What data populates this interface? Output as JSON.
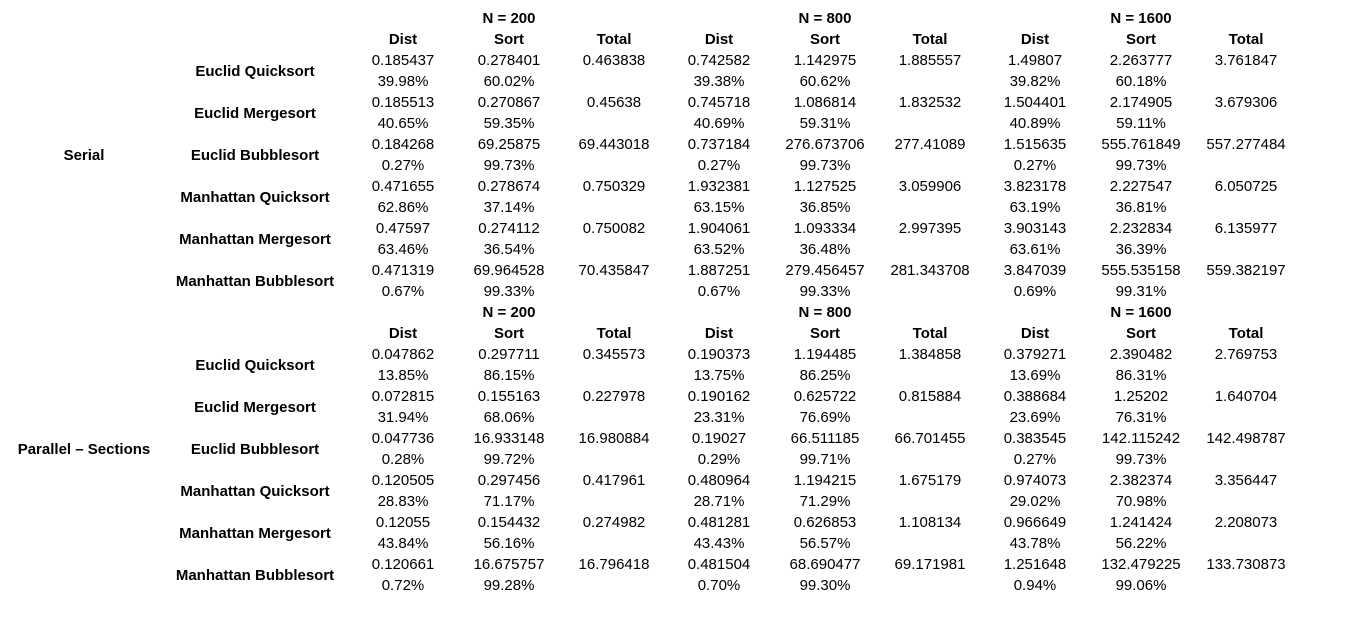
{
  "labels": {
    "dist": "Dist",
    "sort": "Sort",
    "total": "Total"
  },
  "sizes": [
    "N = 200",
    "N = 800",
    "N = 1600"
  ],
  "sections": [
    {
      "name": "Serial",
      "rows": [
        {
          "algorithm": "Euclid Quicksort",
          "n200": {
            "dist": "0.185437",
            "sort": "0.278401",
            "total": "0.463838",
            "dist_pct": "39.98%",
            "sort_pct": "60.02%"
          },
          "n800": {
            "dist": "0.742582",
            "sort": "1.142975",
            "total": "1.885557",
            "dist_pct": "39.38%",
            "sort_pct": "60.62%"
          },
          "n1600": {
            "dist": "1.49807",
            "sort": "2.263777",
            "total": "3.761847",
            "dist_pct": "39.82%",
            "sort_pct": "60.18%"
          }
        },
        {
          "algorithm": "Euclid Mergesort",
          "n200": {
            "dist": "0.185513",
            "sort": "0.270867",
            "total": "0.45638",
            "dist_pct": "40.65%",
            "sort_pct": "59.35%"
          },
          "n800": {
            "dist": "0.745718",
            "sort": "1.086814",
            "total": "1.832532",
            "dist_pct": "40.69%",
            "sort_pct": "59.31%"
          },
          "n1600": {
            "dist": "1.504401",
            "sort": "2.174905",
            "total": "3.679306",
            "dist_pct": "40.89%",
            "sort_pct": "59.11%"
          }
        },
        {
          "algorithm": "Euclid Bubblesort",
          "n200": {
            "dist": "0.184268",
            "sort": "69.25875",
            "total": "69.443018",
            "dist_pct": "0.27%",
            "sort_pct": "99.73%"
          },
          "n800": {
            "dist": "0.737184",
            "sort": "276.673706",
            "total": "277.41089",
            "dist_pct": "0.27%",
            "sort_pct": "99.73%"
          },
          "n1600": {
            "dist": "1.515635",
            "sort": "555.761849",
            "total": "557.277484",
            "dist_pct": "0.27%",
            "sort_pct": "99.73%"
          }
        },
        {
          "algorithm": "Manhattan Quicksort",
          "n200": {
            "dist": "0.471655",
            "sort": "0.278674",
            "total": "0.750329",
            "dist_pct": "62.86%",
            "sort_pct": "37.14%"
          },
          "n800": {
            "dist": "1.932381",
            "sort": "1.127525",
            "total": "3.059906",
            "dist_pct": "63.15%",
            "sort_pct": "36.85%"
          },
          "n1600": {
            "dist": "3.823178",
            "sort": "2.227547",
            "total": "6.050725",
            "dist_pct": "63.19%",
            "sort_pct": "36.81%"
          }
        },
        {
          "algorithm": "Manhattan Mergesort",
          "n200": {
            "dist": "0.47597",
            "sort": "0.274112",
            "total": "0.750082",
            "dist_pct": "63.46%",
            "sort_pct": "36.54%"
          },
          "n800": {
            "dist": "1.904061",
            "sort": "1.093334",
            "total": "2.997395",
            "dist_pct": "63.52%",
            "sort_pct": "36.48%"
          },
          "n1600": {
            "dist": "3.903143",
            "sort": "2.232834",
            "total": "6.135977",
            "dist_pct": "63.61%",
            "sort_pct": "36.39%"
          }
        },
        {
          "algorithm": "Manhattan Bubblesort",
          "n200": {
            "dist": "0.471319",
            "sort": "69.964528",
            "total": "70.435847",
            "dist_pct": "0.67%",
            "sort_pct": "99.33%"
          },
          "n800": {
            "dist": "1.887251",
            "sort": "279.456457",
            "total": "281.343708",
            "dist_pct": "0.67%",
            "sort_pct": "99.33%"
          },
          "n1600": {
            "dist": "3.847039",
            "sort": "555.535158",
            "total": "559.382197",
            "dist_pct": "0.69%",
            "sort_pct": "99.31%"
          }
        }
      ]
    },
    {
      "name": "Parallel – Sections",
      "rows": [
        {
          "algorithm": "Euclid Quicksort",
          "n200": {
            "dist": "0.047862",
            "sort": "0.297711",
            "total": "0.345573",
            "dist_pct": "13.85%",
            "sort_pct": "86.15%"
          },
          "n800": {
            "dist": "0.190373",
            "sort": "1.194485",
            "total": "1.384858",
            "dist_pct": "13.75%",
            "sort_pct": "86.25%"
          },
          "n1600": {
            "dist": "0.379271",
            "sort": "2.390482",
            "total": "2.769753",
            "dist_pct": "13.69%",
            "sort_pct": "86.31%"
          }
        },
        {
          "algorithm": "Euclid Mergesort",
          "n200": {
            "dist": "0.072815",
            "sort": "0.155163",
            "total": "0.227978",
            "dist_pct": "31.94%",
            "sort_pct": "68.06%"
          },
          "n800": {
            "dist": "0.190162",
            "sort": "0.625722",
            "total": "0.815884",
            "dist_pct": "23.31%",
            "sort_pct": "76.69%"
          },
          "n1600": {
            "dist": "0.388684",
            "sort": "1.25202",
            "total": "1.640704",
            "dist_pct": "23.69%",
            "sort_pct": "76.31%"
          }
        },
        {
          "algorithm": "Euclid Bubblesort",
          "n200": {
            "dist": "0.047736",
            "sort": "16.933148",
            "total": "16.980884",
            "dist_pct": "0.28%",
            "sort_pct": "99.72%"
          },
          "n800": {
            "dist": "0.19027",
            "sort": "66.511185",
            "total": "66.701455",
            "dist_pct": "0.29%",
            "sort_pct": "99.71%"
          },
          "n1600": {
            "dist": "0.383545",
            "sort": "142.115242",
            "total": "142.498787",
            "dist_pct": "0.27%",
            "sort_pct": "99.73%"
          }
        },
        {
          "algorithm": "Manhattan Quicksort",
          "n200": {
            "dist": "0.120505",
            "sort": "0.297456",
            "total": "0.417961",
            "dist_pct": "28.83%",
            "sort_pct": "71.17%"
          },
          "n800": {
            "dist": "0.480964",
            "sort": "1.194215",
            "total": "1.675179",
            "dist_pct": "28.71%",
            "sort_pct": "71.29%"
          },
          "n1600": {
            "dist": "0.974073",
            "sort": "2.382374",
            "total": "3.356447",
            "dist_pct": "29.02%",
            "sort_pct": "70.98%"
          }
        },
        {
          "algorithm": "Manhattan Mergesort",
          "n200": {
            "dist": "0.12055",
            "sort": "0.154432",
            "total": "0.274982",
            "dist_pct": "43.84%",
            "sort_pct": "56.16%"
          },
          "n800": {
            "dist": "0.481281",
            "sort": "0.626853",
            "total": "1.108134",
            "dist_pct": "43.43%",
            "sort_pct": "56.57%"
          },
          "n1600": {
            "dist": "0.966649",
            "sort": "1.241424",
            "total": "2.208073",
            "dist_pct": "43.78%",
            "sort_pct": "56.22%"
          }
        },
        {
          "algorithm": "Manhattan Bubblesort",
          "n200": {
            "dist": "0.120661",
            "sort": "16.675757",
            "total": "16.796418",
            "dist_pct": "0.72%",
            "sort_pct": "99.28%"
          },
          "n800": {
            "dist": "0.481504",
            "sort": "68.690477",
            "total": "69.171981",
            "dist_pct": "0.70%",
            "sort_pct": "99.30%"
          },
          "n1600": {
            "dist": "1.251648",
            "sort": "132.479225",
            "total": "133.730873",
            "dist_pct": "0.94%",
            "sort_pct": "99.06%"
          }
        }
      ]
    }
  ]
}
